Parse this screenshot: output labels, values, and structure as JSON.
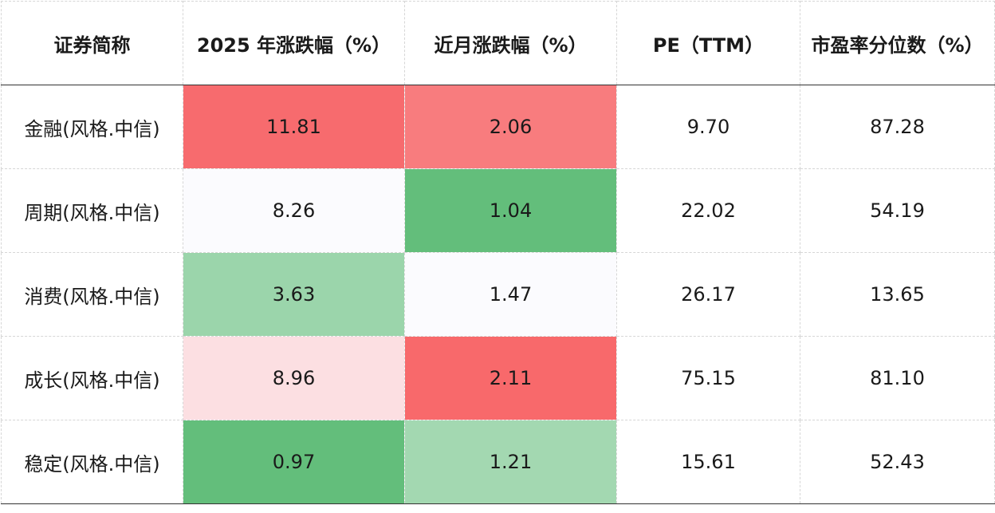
{
  "chart_data": {
    "type": "table",
    "columns": [
      "证券简称",
      "2025 年涨跌幅（%）",
      "近月涨跌幅（%）",
      "PE（TTM）",
      "市盈率分位数（%）"
    ],
    "rows": [
      {
        "name": "金融(风格.中信)",
        "values": [
          "11.81",
          "2.06",
          "9.70",
          "87.28"
        ],
        "colors": [
          "#f76b6e",
          "#f87c7e",
          "",
          ""
        ]
      },
      {
        "name": "周期(风格.中信)",
        "values": [
          "8.26",
          "1.04",
          "22.02",
          "54.19"
        ],
        "colors": [
          "#fbfbfe",
          "#63be7b",
          "",
          ""
        ]
      },
      {
        "name": "消费(风格.中信)",
        "values": [
          "3.63",
          "1.47",
          "26.17",
          "13.65"
        ],
        "colors": [
          "#9bd5ab",
          "#fbfbfe",
          "",
          ""
        ]
      },
      {
        "name": "成长(风格.中信)",
        "values": [
          "8.96",
          "2.11",
          "75.15",
          "81.10"
        ],
        "colors": [
          "#fcdfe2",
          "#f8696b",
          "",
          ""
        ]
      },
      {
        "name": "稳定(风格.中信)",
        "values": [
          "0.97",
          "1.21",
          "15.61",
          "52.43"
        ],
        "colors": [
          "#63be7b",
          "#a3d8b1",
          "",
          ""
        ]
      }
    ]
  }
}
